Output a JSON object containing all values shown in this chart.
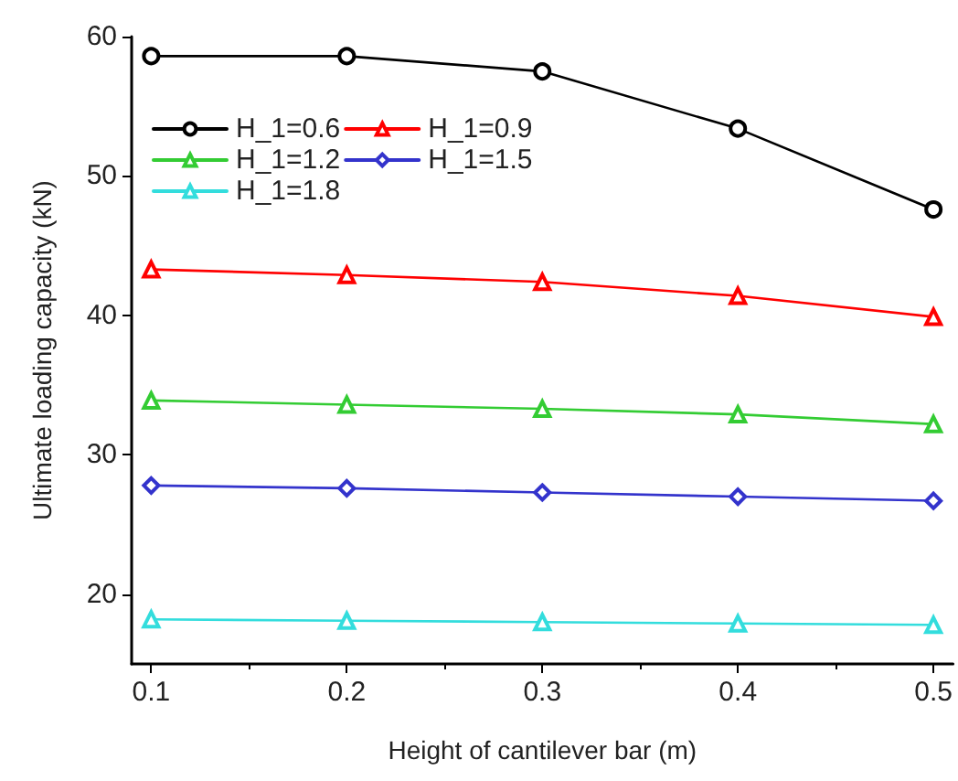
{
  "chart_data": {
    "type": "line",
    "xlabel": "Height of cantilever bar (m)",
    "ylabel": "Ultimate loading capacity (kN)",
    "x": [
      0.1,
      0.2,
      0.3,
      0.4,
      0.5
    ],
    "series": [
      {
        "name": "H_1=0.6",
        "color": "#000000",
        "marker": "circle",
        "values": [
          58.6,
          58.6,
          57.5,
          53.4,
          47.6
        ]
      },
      {
        "name": "H_1=0.9",
        "color": "#ff0000",
        "marker": "triangle",
        "values": [
          43.3,
          42.9,
          42.4,
          41.4,
          39.9
        ]
      },
      {
        "name": "H_1=1.2",
        "color": "#33cc33",
        "marker": "triangle",
        "values": [
          33.9,
          33.6,
          33.3,
          32.9,
          32.2
        ]
      },
      {
        "name": "H_1=1.5",
        "color": "#3333cc",
        "marker": "diamond",
        "values": [
          27.8,
          27.6,
          27.3,
          27.0,
          26.7
        ]
      },
      {
        "name": "H_1=1.8",
        "color": "#33dddd",
        "marker": "triangle",
        "values": [
          18.2,
          18.1,
          18.0,
          17.9,
          17.8
        ]
      }
    ],
    "xlim": [
      0.09,
      0.51
    ],
    "xticks": [
      0.1,
      0.2,
      0.3,
      0.4,
      0.5
    ],
    "ylim": [
      15,
      60
    ],
    "yticks": [
      20,
      30,
      40,
      50,
      60
    ],
    "grid": false,
    "legend": "top left",
    "line_style": "solid"
  }
}
